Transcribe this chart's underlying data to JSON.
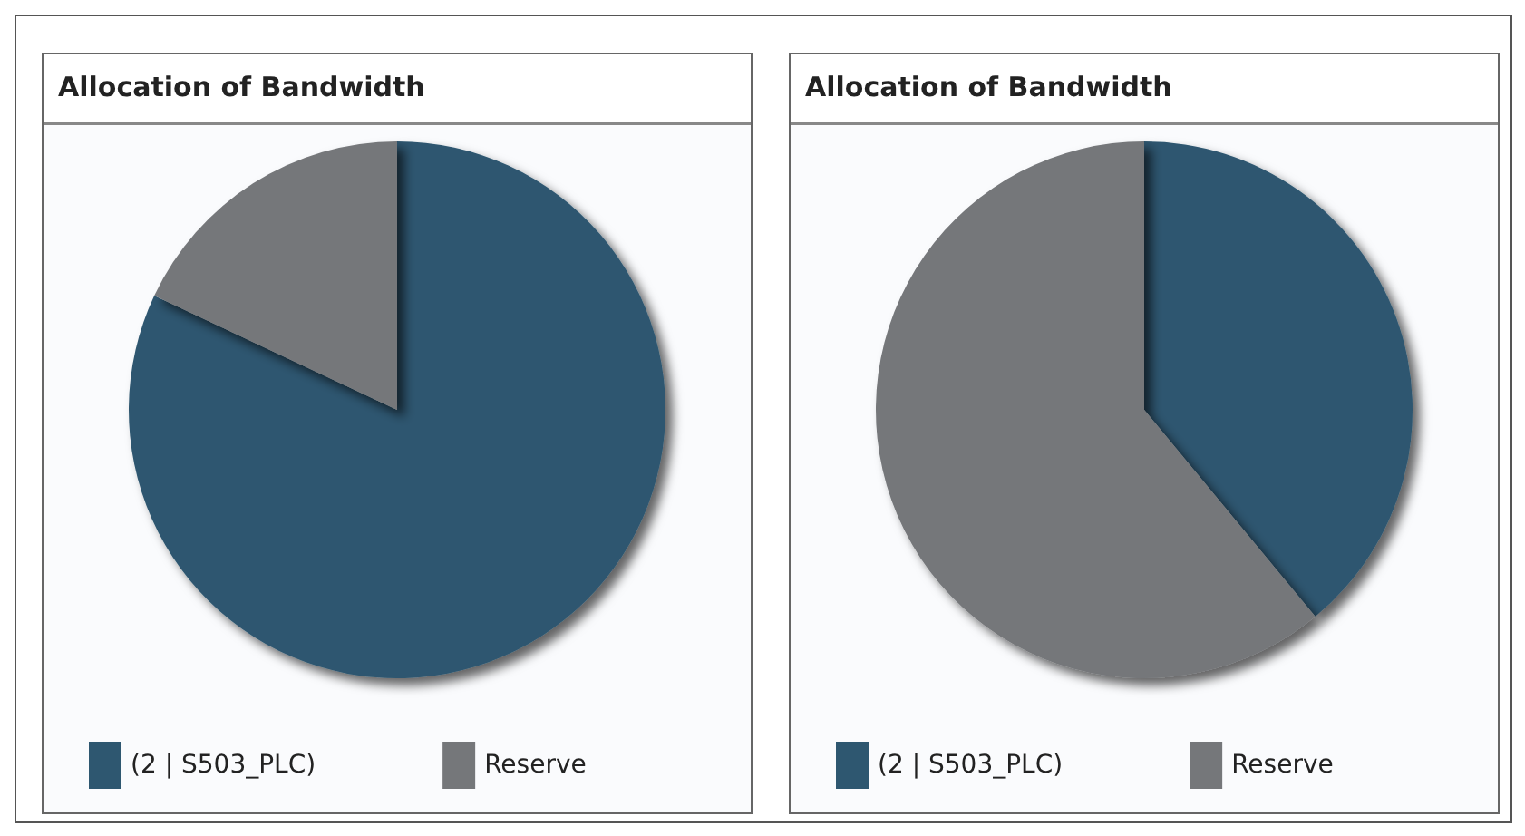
{
  "chart_data": [
    {
      "type": "pie",
      "title": "Allocation of Bandwidth",
      "categories": [
        "(2 | S503_PLC)",
        "Reserve"
      ],
      "values": [
        82,
        18
      ],
      "colors": [
        "#2e5770",
        "#75777a"
      ],
      "legend": "bottom"
    },
    {
      "type": "pie",
      "title": "Allocation of Bandwidth",
      "categories": [
        "(2 | S503_PLC)",
        "Reserve"
      ],
      "values": [
        39,
        61
      ],
      "colors": [
        "#2e5770",
        "#75777a"
      ],
      "legend": "bottom"
    }
  ]
}
